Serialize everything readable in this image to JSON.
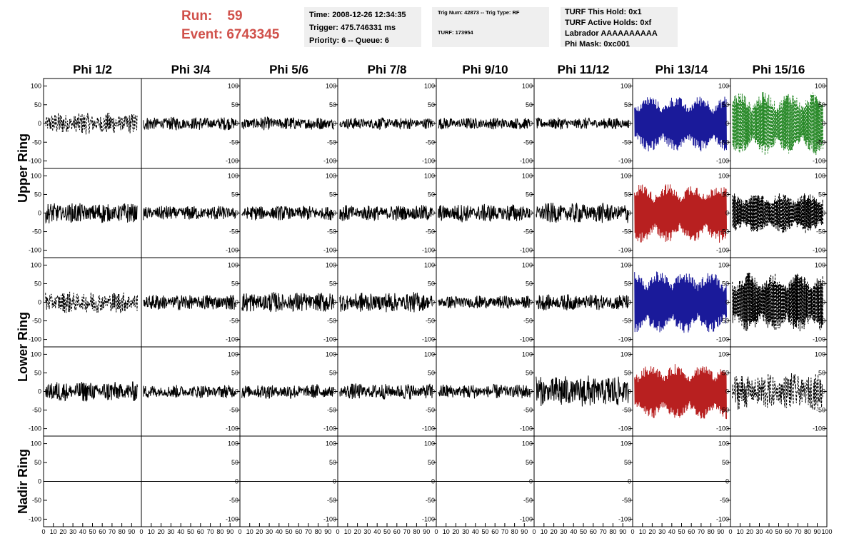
{
  "header": {
    "run_label": "Run:",
    "run_value": "59",
    "event_label": "Event:",
    "event_value": "6743345",
    "time": "Time: 2008-12-26 12:34:35",
    "trigger": "Trigger: 475.746331 ms",
    "priority": "Priority: 6 -- Queue: 6",
    "trig_num": "Trig Num: 42873 -- Trig Type: RF",
    "turf": "TURF: 173954",
    "turf_hold": "TURF This Hold: 0x1",
    "turf_active": "TURF Active Holds: 0xf",
    "labrador": "Labrador AAAAAAAAAA",
    "phi_mask": "Phi Mask: 0xc001",
    "header_color": "#d0504a"
  },
  "chart_data": {
    "type": "line",
    "columns": [
      "Phi 1/2",
      "Phi 3/4",
      "Phi 5/6",
      "Phi 7/8",
      "Phi 9/10",
      "Phi 11/12",
      "Phi 13/14",
      "Phi 15/16"
    ],
    "row_groups": [
      "Upper Ring",
      "Lower Ring",
      "Nadir Ring"
    ],
    "xlim": [
      0,
      100
    ],
    "ylim": [
      -120,
      120
    ],
    "x_ticks": [
      "0",
      "10",
      "20",
      "30",
      "40",
      "50",
      "60",
      "70",
      "80",
      "90",
      "100"
    ],
    "y_ticks": [
      "100",
      "50",
      "0",
      "-50",
      "-100"
    ],
    "grid": false,
    "colors": {
      "black": "#000000",
      "blue": "#1a1a9a",
      "red": "#b82020",
      "green": "#2a8a2a"
    },
    "panels": [
      {
        "row": 0,
        "col": 0,
        "style": "dashed",
        "color": "black",
        "amplitude": 30
      },
      {
        "row": 0,
        "col": 1,
        "style": "solid",
        "color": "black",
        "amplitude": 18
      },
      {
        "row": 0,
        "col": 2,
        "style": "solid",
        "color": "black",
        "amplitude": 18
      },
      {
        "row": 0,
        "col": 3,
        "style": "solid",
        "color": "black",
        "amplitude": 16
      },
      {
        "row": 0,
        "col": 4,
        "style": "solid",
        "color": "black",
        "amplitude": 16
      },
      {
        "row": 0,
        "col": 5,
        "style": "solid",
        "color": "black",
        "amplitude": 16
      },
      {
        "row": 0,
        "col": 6,
        "style": "solid",
        "color": "blue",
        "amplitude": 75
      },
      {
        "row": 0,
        "col": 7,
        "style": "dashed",
        "color": "green",
        "amplitude": 85
      },
      {
        "row": 1,
        "col": 0,
        "style": "solid",
        "color": "black",
        "amplitude": 28
      },
      {
        "row": 1,
        "col": 1,
        "style": "solid",
        "color": "black",
        "amplitude": 20
      },
      {
        "row": 1,
        "col": 2,
        "style": "solid",
        "color": "black",
        "amplitude": 20
      },
      {
        "row": 1,
        "col": 3,
        "style": "solid",
        "color": "black",
        "amplitude": 22
      },
      {
        "row": 1,
        "col": 4,
        "style": "solid",
        "color": "black",
        "amplitude": 25
      },
      {
        "row": 1,
        "col": 5,
        "style": "solid",
        "color": "black",
        "amplitude": 28
      },
      {
        "row": 1,
        "col": 6,
        "style": "solid",
        "color": "red",
        "amplitude": 80
      },
      {
        "row": 1,
        "col": 7,
        "style": "dashed",
        "color": "black",
        "amplitude": 55
      },
      {
        "row": 2,
        "col": 0,
        "style": "dashed",
        "color": "black",
        "amplitude": 30
      },
      {
        "row": 2,
        "col": 1,
        "style": "solid",
        "color": "black",
        "amplitude": 22
      },
      {
        "row": 2,
        "col": 2,
        "style": "solid",
        "color": "black",
        "amplitude": 28
      },
      {
        "row": 2,
        "col": 3,
        "style": "solid",
        "color": "black",
        "amplitude": 28
      },
      {
        "row": 2,
        "col": 4,
        "style": "solid",
        "color": "black",
        "amplitude": 18
      },
      {
        "row": 2,
        "col": 5,
        "style": "solid",
        "color": "black",
        "amplitude": 22
      },
      {
        "row": 2,
        "col": 6,
        "style": "solid",
        "color": "blue",
        "amplitude": 85
      },
      {
        "row": 2,
        "col": 7,
        "style": "dashed",
        "color": "black",
        "amplitude": 80
      },
      {
        "row": 3,
        "col": 0,
        "style": "solid",
        "color": "black",
        "amplitude": 28
      },
      {
        "row": 3,
        "col": 1,
        "style": "solid",
        "color": "black",
        "amplitude": 18
      },
      {
        "row": 3,
        "col": 2,
        "style": "solid",
        "color": "black",
        "amplitude": 20
      },
      {
        "row": 3,
        "col": 3,
        "style": "solid",
        "color": "black",
        "amplitude": 22
      },
      {
        "row": 3,
        "col": 4,
        "style": "solid",
        "color": "black",
        "amplitude": 20
      },
      {
        "row": 3,
        "col": 5,
        "style": "solid",
        "color": "black",
        "amplitude": 45
      },
      {
        "row": 3,
        "col": 6,
        "style": "solid",
        "color": "red",
        "amplitude": 75
      },
      {
        "row": 3,
        "col": 7,
        "style": "dashed",
        "color": "black",
        "amplitude": 50
      },
      {
        "row": 4,
        "col": 0,
        "style": "flat",
        "color": "black",
        "amplitude": 0
      },
      {
        "row": 4,
        "col": 1,
        "style": "flat",
        "color": "black",
        "amplitude": 0
      },
      {
        "row": 4,
        "col": 2,
        "style": "flat",
        "color": "black",
        "amplitude": 0
      },
      {
        "row": 4,
        "col": 3,
        "style": "flat",
        "color": "black",
        "amplitude": 0
      },
      {
        "row": 4,
        "col": 4,
        "style": "flat",
        "color": "black",
        "amplitude": 0
      },
      {
        "row": 4,
        "col": 5,
        "style": "flat",
        "color": "black",
        "amplitude": 0
      },
      {
        "row": 4,
        "col": 6,
        "style": "flat",
        "color": "black",
        "amplitude": 0
      },
      {
        "row": 4,
        "col": 7,
        "style": "empty",
        "color": "black",
        "amplitude": 0
      }
    ]
  }
}
